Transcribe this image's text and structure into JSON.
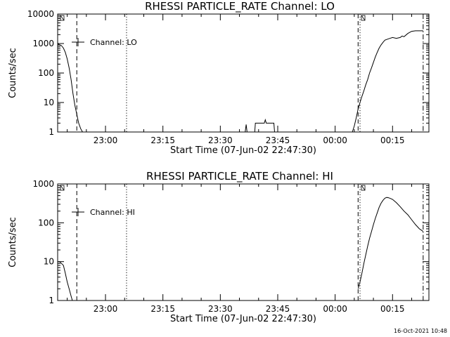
{
  "window": {
    "timestamp": "16-Oct-2021 10:48"
  },
  "chart_data": [
    {
      "type": "line",
      "title": "RHESSI PARTICLE_RATE Channel: LO",
      "xlabel": "Start Time (07-Jun-02 22:47:30)",
      "ylabel": "Counts/sec",
      "yscale": "log",
      "xlim": [
        "22:47:30",
        "00:24:30"
      ],
      "ylim": [
        1,
        10000
      ],
      "x_ticks": [
        "23:00",
        "23:15",
        "23:30",
        "23:45",
        "00:00",
        "00:15"
      ],
      "y_ticks": [
        "1",
        "10",
        "100",
        "1000",
        "10000"
      ],
      "legend": {
        "label": "Channel: LO",
        "position": "top-left"
      },
      "markers": [
        {
          "time": "22:52:30",
          "style": "dashed"
        },
        {
          "time": "23:05:30",
          "style": "dotted"
        },
        {
          "time": "00:06:00",
          "style": "dashed"
        },
        {
          "time": "00:06:30",
          "style": "dotted"
        },
        {
          "time": "00:23:00",
          "style": "dashdot"
        }
      ],
      "series": [
        {
          "segments": [
            {
              "x": [
                "22:47:30",
                "22:48:00",
                "22:48:30",
                "22:49:00",
                "22:49:30",
                "22:50:00",
                "22:50:30",
                "22:51:00",
                "22:51:30",
                "22:52:00",
                "22:52:30",
                "22:53:00",
                "22:53:30",
                "22:54:00"
              ],
              "y": [
                1000,
                900,
                850,
                700,
                500,
                300,
                150,
                60,
                20,
                8,
                4,
                2,
                1.3,
                1
              ]
            },
            {
              "x": [
                "23:36:30",
                "23:36:45",
                "23:37:00"
              ],
              "y": [
                1,
                1.8,
                1
              ]
            },
            {
              "x": [
                "23:39:00",
                "23:39:10",
                "23:41:00",
                "23:41:30",
                "23:41:45",
                "23:42:00",
                "23:42:30",
                "23:44:00",
                "23:44:10"
              ],
              "y": [
                1,
                2,
                2,
                2,
                2.6,
                2,
                2,
                2,
                1
              ]
            },
            {
              "x": [
                "00:04:30",
                "00:05:00",
                "00:05:30",
                "00:06:00",
                "00:06:30",
                "00:07:00",
                "00:07:30",
                "00:08:00",
                "00:08:30",
                "00:09:00",
                "00:09:30",
                "00:10:00",
                "00:10:30",
                "00:11:00",
                "00:11:30",
                "00:12:00",
                "00:12:30",
                "00:13:00",
                "00:14:00",
                "00:15:00",
                "00:16:00",
                "00:17:00",
                "00:17:30",
                "00:18:00",
                "00:19:00",
                "00:20:00",
                "00:21:00",
                "00:22:00",
                "00:23:00"
              ],
              "y": [
                1,
                1.6,
                3,
                6,
                10,
                16,
                25,
                40,
                60,
                100,
                150,
                230,
                350,
                500,
                700,
                900,
                1100,
                1300,
                1450,
                1600,
                1500,
                1600,
                1800,
                1700,
                2200,
                2600,
                2700,
                2700,
                2700
              ]
            }
          ]
        }
      ]
    },
    {
      "type": "line",
      "title": "RHESSI PARTICLE_RATE Channel: HI",
      "xlabel": "Start Time (07-Jun-02 22:47:30)",
      "ylabel": "Counts/sec",
      "yscale": "log",
      "xlim": [
        "22:47:30",
        "00:24:30"
      ],
      "ylim": [
        1,
        1000
      ],
      "x_ticks": [
        "23:00",
        "23:15",
        "23:30",
        "23:45",
        "00:00",
        "00:15"
      ],
      "y_ticks": [
        "1",
        "10",
        "100",
        "1000"
      ],
      "legend": {
        "label": "Channel: HI",
        "position": "top-left"
      },
      "markers": [
        {
          "time": "22:52:30",
          "style": "dashed"
        },
        {
          "time": "23:05:30",
          "style": "dotted"
        },
        {
          "time": "00:06:00",
          "style": "dashed"
        },
        {
          "time": "00:06:30",
          "style": "dotted"
        },
        {
          "time": "00:23:00",
          "style": "dashdot"
        }
      ],
      "series": [
        {
          "segments": [
            {
              "x": [
                "22:47:30",
                "22:48:00",
                "22:48:30",
                "22:49:00",
                "22:49:30",
                "22:50:00",
                "22:50:30",
                "22:51:00",
                "22:51:20"
              ],
              "y": [
                10,
                10,
                9,
                8,
                5,
                3,
                2,
                1.3,
                1
              ]
            },
            {
              "x": [
                "00:06:00",
                "00:06:30",
                "00:07:00",
                "00:07:30",
                "00:08:00",
                "00:08:30",
                "00:09:00",
                "00:09:30",
                "00:10:00",
                "00:10:30",
                "00:11:00",
                "00:11:30",
                "00:12:00",
                "00:12:30",
                "00:13:00",
                "00:13:30",
                "00:14:00",
                "00:14:30",
                "00:15:00",
                "00:16:00",
                "00:17:00",
                "00:18:00",
                "00:19:00",
                "00:20:00",
                "00:21:00",
                "00:22:00",
                "00:22:30",
                "00:23:00"
              ],
              "y": [
                2,
                3,
                5,
                9,
                15,
                25,
                40,
                60,
                90,
                130,
                180,
                250,
                320,
                380,
                430,
                450,
                440,
                420,
                400,
                330,
                260,
                200,
                160,
                120,
                90,
                70,
                65,
                60
              ]
            }
          ]
        }
      ]
    }
  ]
}
